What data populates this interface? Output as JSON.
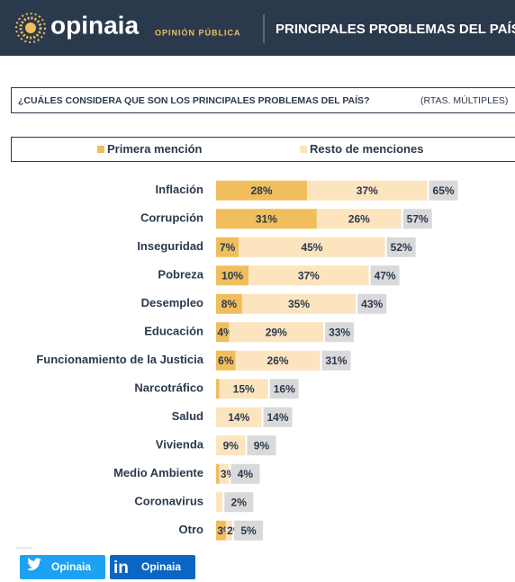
{
  "header": {
    "brand": "opinaia",
    "brand_sub": "OPINIÓN PÚBLICA",
    "title": "PRINCIPALES PROBLEMAS DEL PAÍS"
  },
  "chart_data": {
    "type": "stacked-bar-horizontal",
    "title": "¿CUÁLES CONSIDERA QUE SON LOS PRINCIPALES PROBLEMAS DEL PAÍS?",
    "subtitle": "(RTAS. MÚLTIPLES)",
    "categories": [
      "Inflación",
      "Corrupción",
      "Inseguridad",
      "Pobreza",
      "Desempleo",
      "Educación",
      "Funcionamiento de la Justicia",
      "Narcotráfico",
      "Salud",
      "Vivienda",
      "Medio Ambiente",
      "Coronavirus",
      "Otro"
    ],
    "series": [
      {
        "name": "Primera mención",
        "color": "#f0be5c",
        "values": [
          28,
          31,
          7,
          10,
          8,
          4,
          6,
          1,
          0,
          0,
          1,
          0,
          3
        ],
        "value_labels": [
          "28%",
          "31%",
          "7%",
          "10%",
          "8%",
          "4%",
          "6%",
          null,
          null,
          null,
          null,
          null,
          "3%"
        ]
      },
      {
        "name": "Resto de menciones",
        "color": "#fce4bf",
        "values": [
          37,
          26,
          45,
          37,
          35,
          29,
          26,
          15,
          14,
          9,
          3,
          2,
          2
        ],
        "value_labels": [
          "37%",
          "26%",
          "45%",
          "37%",
          "35%",
          "29%",
          "26%",
          "15%",
          "14%",
          "9%",
          "3%",
          null,
          "2%"
        ]
      }
    ],
    "totals": [
      65,
      57,
      52,
      47,
      43,
      33,
      31,
      16,
      14,
      9,
      4,
      2,
      5
    ],
    "total_labels": [
      "65%",
      "57%",
      "52%",
      "47%",
      "43%",
      "33%",
      "31%",
      "16%",
      "14%",
      "9%",
      "4%",
      "2%",
      "5%"
    ],
    "total_color": "#d9d9d9",
    "xlim": [
      0,
      92
    ]
  },
  "share": {
    "twitter": "Opinaia",
    "linkedin": "Opinaia"
  }
}
